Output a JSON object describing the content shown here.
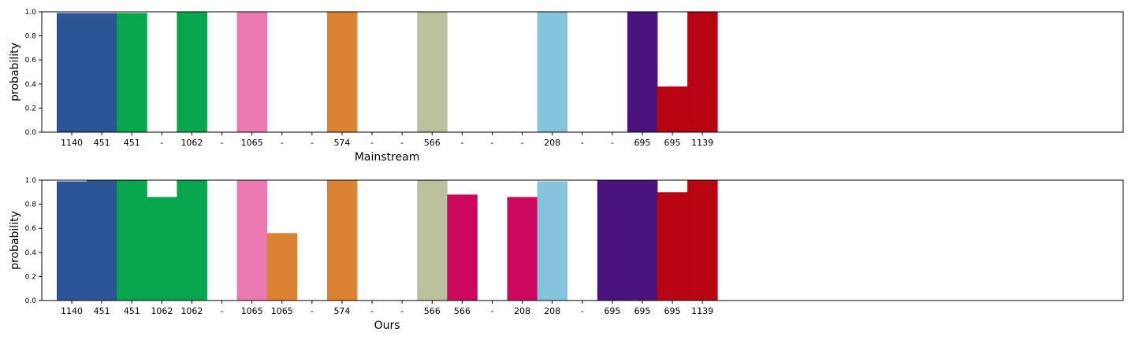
{
  "chart_data": [
    {
      "type": "bar",
      "xlabel": "Mainstream",
      "ylabel": "probability",
      "ylim": [
        0,
        1.0
      ],
      "yticks": [
        "0.0",
        "0.2",
        "0.4",
        "0.6",
        "0.8",
        "1.0"
      ],
      "grid": false,
      "categories": [
        "1140",
        "451",
        "451",
        "-",
        "1062",
        "-",
        "1065",
        "-",
        "-",
        "574",
        "-",
        "-",
        "566",
        "-",
        "-",
        "-",
        "208",
        "-",
        "-",
        "695",
        "695",
        "1139"
      ],
      "values": [
        0.99,
        0.99,
        0.99,
        0,
        1.0,
        0,
        1.0,
        0,
        0,
        1.0,
        0,
        0,
        1.0,
        0,
        0,
        0,
        1.0,
        0,
        0,
        1.0,
        0.38,
        1.0
      ],
      "colors": [
        "#2c5598",
        "#2c5598",
        "#08a64c",
        "#ffffff",
        "#08a64c",
        "#ffffff",
        "#ea7aaf",
        "#ffffff",
        "#ffffff",
        "#da8433",
        "#ffffff",
        "#ffffff",
        "#bbc19d",
        "#ffffff",
        "#ffffff",
        "#ffffff",
        "#84c4dc",
        "#ffffff",
        "#ffffff",
        "#4d137d",
        "#b80312",
        "#b80312"
      ]
    },
    {
      "type": "bar",
      "xlabel": "Ours",
      "ylabel": "probability",
      "ylim": [
        0,
        1.0
      ],
      "yticks": [
        "0.0",
        "0.2",
        "0.4",
        "0.6",
        "0.8",
        "1.0"
      ],
      "grid": false,
      "categories": [
        "1140",
        "451",
        "451",
        "1062",
        "1062",
        "-",
        "1065",
        "1065",
        "-",
        "574",
        "-",
        "-",
        "566",
        "566",
        "-",
        "208",
        "208",
        "-",
        "695",
        "695",
        "695",
        "1139"
      ],
      "values": [
        0.99,
        1.0,
        1.0,
        0.86,
        1.0,
        0,
        1.0,
        0.56,
        0,
        1.0,
        0,
        0,
        1.0,
        0.88,
        0,
        0.86,
        0.99,
        0,
        1.0,
        1.0,
        0.9,
        1.0
      ],
      "colors": [
        "#2c5598",
        "#2c5598",
        "#08a64c",
        "#08a64c",
        "#08a64c",
        "#ffffff",
        "#ea7aaf",
        "#da8433",
        "#ffffff",
        "#da8433",
        "#ffffff",
        "#ffffff",
        "#bbc19d",
        "#cc075e",
        "#ffffff",
        "#cc075e",
        "#84c4dc",
        "#ffffff",
        "#4d137d",
        "#4d137d",
        "#b80312",
        "#b80312"
      ]
    }
  ]
}
